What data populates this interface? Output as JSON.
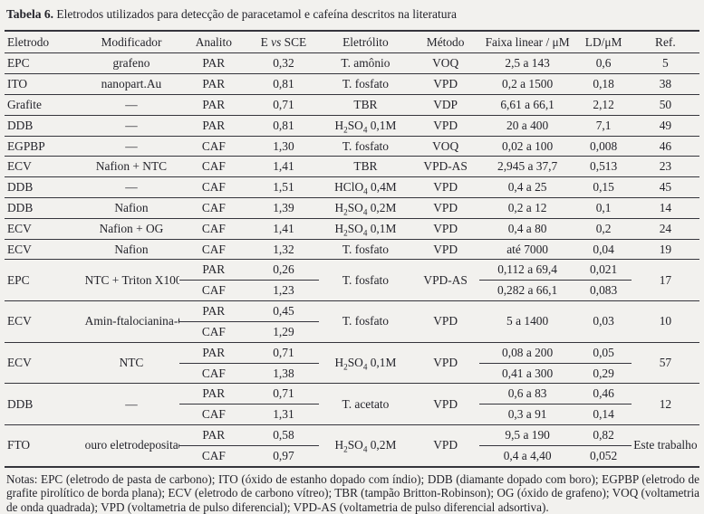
{
  "title": {
    "label": "Tabela 6.",
    "text": "Eletrodos utilizados para detecção de paracetamol e cafeína descritos na literatura"
  },
  "colors": {
    "ink": "#24242b",
    "paper": "#f2f1ee",
    "rule": "#35353c"
  },
  "table": {
    "headers": [
      {
        "id": "eletrodo",
        "label": "Eletrodo"
      },
      {
        "id": "modificador",
        "label": "Modificador"
      },
      {
        "id": "analito",
        "label": "Analito"
      },
      {
        "id": "e-vs-sce",
        "label": "E *vs* SCE"
      },
      {
        "id": "eletrolito",
        "label": "Eletrólito"
      },
      {
        "id": "metodo",
        "label": "Método"
      },
      {
        "id": "faixa-linear",
        "label": "Faixa linear / μM"
      },
      {
        "id": "ld",
        "label": "LD/μM"
      },
      {
        "id": "ref",
        "label": "Ref."
      }
    ],
    "rows": [
      {
        "eletrodo": "EPC",
        "modificador": "grafeno",
        "eletrolito": "T. amônio",
        "metodo": "VOQ",
        "ref": "5",
        "entries": [
          {
            "analito": "PAR",
            "e": "0,32",
            "faixa": "2,5 a 143",
            "ld": "0,6"
          }
        ]
      },
      {
        "eletrodo": "ITO",
        "modificador": "nanopart.Au",
        "eletrolito": "T. fosfato",
        "metodo": "VPD",
        "ref": "38",
        "entries": [
          {
            "analito": "PAR",
            "e": "0,81",
            "faixa": "0,2 a 1500",
            "ld": "0,18"
          }
        ]
      },
      {
        "eletrodo": "Grafite",
        "modificador": "—",
        "eletrolito": "TBR",
        "metodo": "VDP",
        "ref": "50",
        "entries": [
          {
            "analito": "PAR",
            "e": "0,71",
            "faixa": "6,61 a 66,1",
            "ld": "2,12"
          }
        ]
      },
      {
        "eletrodo": "DDB",
        "modificador": "—",
        "eletrolito": "H_2_SO_4_ 0,1M",
        "metodo": "VPD",
        "ref": "49",
        "entries": [
          {
            "analito": "PAR",
            "e": "0,81",
            "faixa": "20 a 400",
            "ld": "7,1"
          }
        ]
      },
      {
        "eletrodo": "EGPBP",
        "modificador": "—",
        "eletrolito": "T. fosfato",
        "metodo": "VOQ",
        "ref": "46",
        "entries": [
          {
            "analito": "CAF",
            "e": "1,30",
            "faixa": "0,02 a 100",
            "ld": "0,008"
          }
        ]
      },
      {
        "eletrodo": "ECV",
        "modificador": "Nafion + NTC",
        "eletrolito": "TBR",
        "metodo": "VPD-AS",
        "ref": "23",
        "entries": [
          {
            "analito": "CAF",
            "e": "1,41",
            "faixa": "2,945 a 37,7",
            "ld": "0,513"
          }
        ]
      },
      {
        "eletrodo": "DDB",
        "modificador": "—",
        "eletrolito": "HClO_4_ 0,4M",
        "metodo": "VPD",
        "ref": "45",
        "entries": [
          {
            "analito": "CAF",
            "e": "1,51",
            "faixa": "0,4 a 25",
            "ld": "0,15"
          }
        ]
      },
      {
        "eletrodo": "DDB",
        "modificador": "Nafion",
        "eletrolito": "H_2_SO_4_ 0,2M",
        "metodo": "VPD",
        "ref": "14",
        "entries": [
          {
            "analito": "CAF",
            "e": "1,39",
            "faixa": "0,2 a 12",
            "ld": "0,1"
          }
        ]
      },
      {
        "eletrodo": "ECV",
        "modificador": "Nafion + OG",
        "eletrolito": "H_2_SO_4_ 0,1M",
        "metodo": "VPD",
        "ref": "24",
        "entries": [
          {
            "analito": "CAF",
            "e": "1,41",
            "faixa": "0,4 a 80",
            "ld": "0,2"
          }
        ]
      },
      {
        "eletrodo": "ECV",
        "modificador": "Nafion",
        "eletrolito": "T. fosfato",
        "metodo": "VPD",
        "ref": "19",
        "entries": [
          {
            "analito": "CAF",
            "e": "1,32",
            "faixa": "até 7000",
            "ld": "0,04"
          }
        ]
      },
      {
        "eletrodo": "EPC",
        "modificador": "NTC + Triton X100",
        "eletrolito": "T. fosfato",
        "metodo": "VPD-AS",
        "ref": "17",
        "entries": [
          {
            "analito": "PAR",
            "e": "0,26",
            "faixa": "0,112 a 69,4",
            "ld": "0,021"
          },
          {
            "analito": "CAF",
            "e": "1,23",
            "faixa": "0,282 a 66,1",
            "ld": "0,083"
          }
        ]
      },
      {
        "eletrodo": "ECV",
        "modificador": "Amin-ftalocianina-Cu^2+^",
        "eletrolito": "T. fosfato",
        "metodo": "VPD",
        "ref": "10",
        "faixa": "5 a 1400",
        "ld": "0,03",
        "entries": [
          {
            "analito": "PAR",
            "e": "0,45"
          },
          {
            "analito": "CAF",
            "e": "1,29"
          }
        ]
      },
      {
        "eletrodo": "ECV",
        "modificador": "NTC",
        "eletrolito": "H_2_SO_4_ 0,1M",
        "metodo": "VPD",
        "ref": "57",
        "entries": [
          {
            "analito": "PAR",
            "e": "0,71",
            "faixa": "0,08 a 200",
            "ld": "0,05"
          },
          {
            "analito": "CAF",
            "e": "1,38",
            "faixa": "0,41 a 300",
            "ld": "0,29"
          }
        ]
      },
      {
        "eletrodo": "DDB",
        "modificador": "—",
        "eletrolito": "T. acetato",
        "metodo": "VPD",
        "ref": "12",
        "entries": [
          {
            "analito": "PAR",
            "e": "0,71",
            "faixa": "0,6 a 83",
            "ld": "0,46"
          },
          {
            "analito": "CAF",
            "e": "1,31",
            "faixa": "0,3 a 91",
            "ld": "0,14"
          }
        ]
      },
      {
        "eletrodo": "FTO",
        "modificador": "ouro eletrodepositado",
        "eletrolito": "H_2_SO_4_ 0,2M",
        "metodo": "VPD",
        "ref": "Este trabalho",
        "entries": [
          {
            "analito": "PAR",
            "e": "0,58",
            "faixa": "9,5 a 190",
            "ld": "0,82"
          },
          {
            "analito": "CAF",
            "e": "0,97",
            "faixa": "0,4 a 4,40",
            "ld": "0,052"
          }
        ]
      }
    ]
  },
  "notes": "Notas: EPC (eletrodo de pasta de carbono); ITO (óxido de estanho dopado com índio); DDB (diamante dopado com boro); EGPBP (eletrodo de grafite pirolítico de borda plana); ECV (eletrodo de carbono vítreo); TBR (tampão Britton-Robinson); OG (óxido de grafeno); VOQ (voltametria de onda quadrada); VPD (voltametria de pulso diferencial); VPD-AS (voltametria de pulso diferencial adsortiva)."
}
